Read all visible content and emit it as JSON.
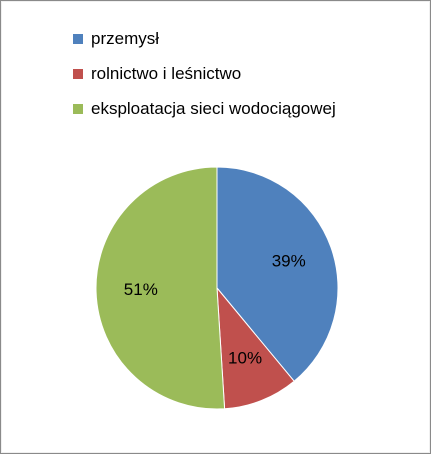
{
  "chart_data": {
    "type": "pie",
    "categories": [
      "przemysł",
      "rolnictwo i leśnictwo",
      "eksploatacja sieci wodociągowej"
    ],
    "values": [
      39,
      10,
      51
    ],
    "labels": [
      "39%",
      "10%",
      "51%"
    ],
    "colors": [
      "#4f81bd",
      "#c0504d",
      "#9bbb59"
    ],
    "legend_position": "top",
    "start_angle_deg": 0,
    "direction": "clockwise"
  },
  "legend": {
    "items": [
      {
        "label": "przemysł",
        "color": "#4f81bd"
      },
      {
        "label": "rolnictwo i leśnictwo",
        "color": "#c0504d"
      },
      {
        "label": "eksploatacja sieci wodociągowej",
        "color": "#9bbb59"
      }
    ]
  }
}
